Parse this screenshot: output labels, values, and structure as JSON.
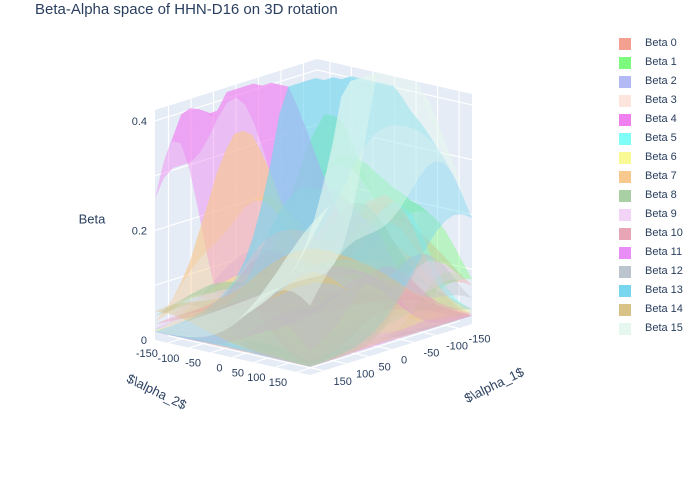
{
  "title": "Beta-Alpha space of HHN-D16 on 3D rotation",
  "chart_data": {
    "type": "surface3d",
    "title": "Beta-Alpha space of HHN-D16 on 3D rotation",
    "scene": {
      "background": "#e5ecf6",
      "grid_color": "#ffffff",
      "x_axis": {
        "title": "$\\alpha_1$",
        "ticks": [
          150,
          100,
          50,
          0,
          -50,
          -100,
          -150
        ],
        "range": [
          -180,
          180
        ]
      },
      "y_axis": {
        "title": "$\\alpha_2$",
        "ticks": [
          -150,
          -100,
          -50,
          0,
          50,
          100,
          150
        ],
        "range": [
          -180,
          180
        ]
      },
      "z_axis": {
        "title": "Beta",
        "ticks": [
          "0",
          "0.2",
          "0.4"
        ],
        "range": [
          0,
          0.42
        ]
      }
    },
    "legend_position": "top-right",
    "series": [
      {
        "name": "Beta 0",
        "color": "#f4a090",
        "peak": 0.14,
        "focus": [
          20,
          140
        ]
      },
      {
        "name": "Beta 1",
        "color": "#7dfa7d",
        "peak": 0.3,
        "focus": [
          -150,
          -120
        ]
      },
      {
        "name": "Beta 2",
        "color": "#b3b9f5",
        "peak": 0.12,
        "focus": [
          60,
          60
        ]
      },
      {
        "name": "Beta 3",
        "color": "#fde4dc",
        "peak": 0.1,
        "focus": [
          0,
          0
        ]
      },
      {
        "name": "Beta 4",
        "color": "#f07ff0",
        "peak": 0.36,
        "focus": [
          160,
          -130
        ]
      },
      {
        "name": "Beta 5",
        "color": "#7ffdf7",
        "peak": 0.18,
        "focus": [
          -160,
          20
        ]
      },
      {
        "name": "Beta 6",
        "color": "#f9f995",
        "peak": 0.12,
        "focus": [
          100,
          100
        ]
      },
      {
        "name": "Beta 7",
        "color": "#f8c98f",
        "peak": 0.31,
        "focus": [
          80,
          -90
        ]
      },
      {
        "name": "Beta 8",
        "color": "#a9d0a4",
        "peak": 0.14,
        "focus": [
          -40,
          60
        ]
      },
      {
        "name": "Beta 9",
        "color": "#f4d4f6",
        "peak": 0.11,
        "focus": [
          -120,
          150
        ]
      },
      {
        "name": "Beta 10",
        "color": "#e8a5b5",
        "peak": 0.16,
        "focus": [
          120,
          30
        ]
      },
      {
        "name": "Beta 11",
        "color": "#e88ef6",
        "peak": 0.12,
        "focus": [
          40,
          170
        ]
      },
      {
        "name": "Beta 12",
        "color": "#bcc4cd",
        "peak": 0.22,
        "focus": [
          0,
          -40
        ]
      },
      {
        "name": "Beta 13",
        "color": "#78d6ee",
        "peak": 0.4,
        "focus": [
          -60,
          -60
        ]
      },
      {
        "name": "Beta 14",
        "color": "#d9c286",
        "peak": 0.1,
        "focus": [
          30,
          30
        ]
      },
      {
        "name": "Beta 15",
        "color": "#e5f7ef",
        "peak": 0.43,
        "focus": [
          -150,
          -10
        ]
      }
    ]
  }
}
